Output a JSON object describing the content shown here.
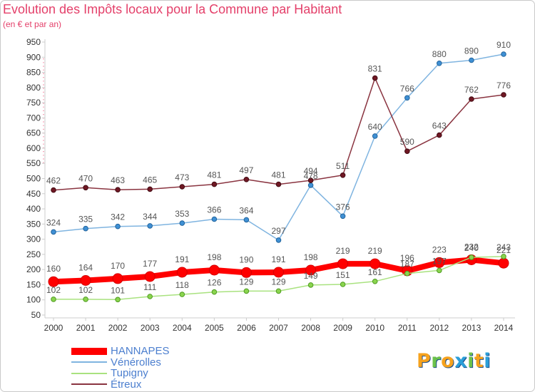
{
  "chart_data": {
    "type": "line",
    "title": "Evolution des Impôts locaux pour la Commune par Habitant",
    "subtitle": "(en € et par an)",
    "xlabel": "",
    "ylabel": "",
    "x": [
      2000,
      2001,
      2002,
      2003,
      2004,
      2005,
      2006,
      2007,
      2008,
      2009,
      2010,
      2011,
      2012,
      2013,
      2014
    ],
    "ylim": [
      50,
      950
    ],
    "yticks": [
      50,
      100,
      150,
      200,
      250,
      300,
      350,
      400,
      450,
      500,
      550,
      600,
      650,
      700,
      750,
      800,
      850,
      900,
      950
    ],
    "grid": false,
    "legend_position": "bottom-left",
    "series": [
      {
        "name": "HANNAPES",
        "color": "#ff0000",
        "marker_color": "#ff0000",
        "marker_stroke": "#d40000",
        "emphasis": true,
        "values": [
          160,
          164,
          170,
          177,
          191,
          198,
          190,
          191,
          198,
          219,
          219,
          196,
          223,
          232,
          221
        ]
      },
      {
        "name": "Vénérolles",
        "color": "#7fb4e0",
        "marker_color": "#3f90d4",
        "marker_stroke": "#23649c",
        "emphasis": false,
        "values": [
          324,
          335,
          342,
          344,
          353,
          366,
          364,
          297,
          478,
          376,
          640,
          766,
          880,
          890,
          910
        ]
      },
      {
        "name": "Tupigny",
        "color": "#a9e27f",
        "marker_color": "#8ad44e",
        "marker_stroke": "#4f9c22",
        "emphasis": false,
        "values": [
          102,
          102,
          101,
          111,
          118,
          126,
          129,
          129,
          149,
          151,
          161,
          187,
          197,
          240,
          243
        ]
      },
      {
        "name": "Étreux",
        "color": "#8a3440",
        "marker_color": "#701824",
        "marker_stroke": "#420a12",
        "emphasis": false,
        "values": [
          462,
          470,
          463,
          465,
          473,
          481,
          497,
          481,
          494,
          511,
          831,
          590,
          643,
          762,
          776
        ]
      }
    ]
  },
  "colors": {
    "title": "#e4406a",
    "legend_text": "#4c7fcf",
    "axis_text": "#333333",
    "axis_line": "#cccccc",
    "axis_accent": "#f07090",
    "value_label": "#555555"
  },
  "logo": {
    "text": "Proxiti",
    "letter_colors": [
      "#f6a21d",
      "#6cc24a",
      "#f6a21d",
      "#2b9fd9",
      "#6cc24a",
      "#f6a21d",
      "#2b9fd9"
    ]
  }
}
